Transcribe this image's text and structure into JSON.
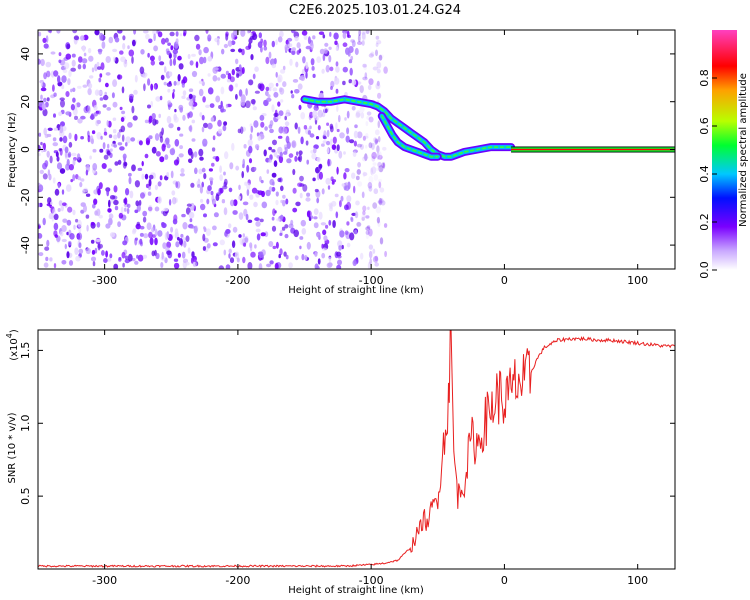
{
  "title": "C2E6.2025.103.01.24.G24",
  "chart_data": [
    {
      "type": "heatmap",
      "name": "spectrogram",
      "xlabel": "Height of straight line (km)",
      "ylabel": "Frequency (Hz)",
      "xlim": [
        -350,
        128
      ],
      "ylim": [
        -50,
        50
      ],
      "xticks": [
        -300,
        -200,
        -100,
        0,
        100
      ],
      "xtick_labels": [
        "-300",
        "-200",
        "-100",
        "0",
        "100"
      ],
      "yticks": [
        -40,
        -20,
        0,
        20,
        40
      ],
      "ytick_labels": [
        "-40",
        "-20",
        "0",
        "20",
        "40"
      ],
      "colorbar": {
        "label": "Normalized spectral amplitude",
        "range": [
          0,
          1
        ],
        "ticks": [
          0.0,
          0.2,
          0.4,
          0.6,
          0.8
        ],
        "tick_labels": [
          "0.0",
          "0.2",
          "0.4",
          "0.6",
          "0.8"
        ],
        "colormap": [
          "#ffffff",
          "#7a00ff",
          "#0000ff",
          "#00c8ff",
          "#00ff30",
          "#c8ff00",
          "#ffa000",
          "#ff0000",
          "#ff40c0"
        ]
      },
      "noise_region_x": [
        -350,
        -95
      ],
      "signal_track": [
        {
          "x": -150,
          "y": 21
        },
        {
          "x": -140,
          "y": 20
        },
        {
          "x": -130,
          "y": 20
        },
        {
          "x": -120,
          "y": 21
        },
        {
          "x": -110,
          "y": 20
        },
        {
          "x": -100,
          "y": 19
        },
        {
          "x": -95,
          "y": 18
        },
        {
          "x": -90,
          "y": 16
        },
        {
          "x": -85,
          "y": 13
        },
        {
          "x": -80,
          "y": 11
        },
        {
          "x": -75,
          "y": 9
        },
        {
          "x": -70,
          "y": 7
        },
        {
          "x": -65,
          "y": 5
        },
        {
          "x": -60,
          "y": 3
        },
        {
          "x": -55,
          "y": 0
        },
        {
          "x": -50,
          "y": -2
        },
        {
          "x": -45,
          "y": -3
        },
        {
          "x": -40,
          "y": -3
        },
        {
          "x": -35,
          "y": -2
        },
        {
          "x": -30,
          "y": -1
        },
        {
          "x": -20,
          "y": 0
        },
        {
          "x": -10,
          "y": 1
        },
        {
          "x": 0,
          "y": 1
        },
        {
          "x": 5,
          "y": 1
        }
      ],
      "signal_branch": [
        {
          "x": -92,
          "y": 14
        },
        {
          "x": -88,
          "y": 10
        },
        {
          "x": -84,
          "y": 6
        },
        {
          "x": -80,
          "y": 3
        },
        {
          "x": -75,
          "y": 1
        },
        {
          "x": -70,
          "y": 0
        },
        {
          "x": -65,
          "y": -1
        },
        {
          "x": -60,
          "y": -2
        },
        {
          "x": -55,
          "y": -3
        },
        {
          "x": -50,
          "y": -3
        }
      ],
      "carrier_line": {
        "x": [
          5,
          128
        ],
        "y": 0
      }
    },
    {
      "type": "line",
      "name": "snr",
      "xlabel": "Height of straight line (km)",
      "ylabel": "SNR (10 * v/v)",
      "scale_label": "(x10",
      "scale_exponent": "4",
      "xlim": [
        -350,
        128
      ],
      "ylim": [
        0,
        1.64
      ],
      "xticks": [
        -300,
        -200,
        -100,
        0,
        100
      ],
      "xtick_labels": [
        "-300",
        "-200",
        "-100",
        "0",
        "100"
      ],
      "yticks": [
        0.5,
        1.0,
        1.5
      ],
      "ytick_labels": [
        "0.5",
        "1.0",
        "1.5"
      ],
      "color": "#e82020",
      "series": [
        {
          "x": [
            -350,
            -300,
            -250,
            -200,
            -150,
            -120,
            -100,
            -90,
            -80,
            -70,
            -65,
            -60,
            -58,
            -55,
            -50,
            -45,
            -42,
            -40,
            -38,
            -35,
            -30,
            -25,
            -20,
            -15,
            -10,
            -5,
            0,
            5,
            10,
            15,
            20,
            25,
            30,
            40,
            50,
            60,
            70,
            80,
            90,
            100,
            110,
            120,
            128
          ],
          "y": [
            0.02,
            0.02,
            0.02,
            0.02,
            0.02,
            0.02,
            0.03,
            0.04,
            0.06,
            0.15,
            0.25,
            0.35,
            0.3,
            0.4,
            0.5,
            0.9,
            1.2,
            1.55,
            0.8,
            0.5,
            0.6,
            0.9,
            0.85,
            1.0,
            1.1,
            1.2,
            1.15,
            1.2,
            1.3,
            1.25,
            1.35,
            1.45,
            1.52,
            1.57,
            1.58,
            1.58,
            1.57,
            1.57,
            1.56,
            1.55,
            1.54,
            1.53,
            1.53
          ]
        }
      ]
    }
  ]
}
